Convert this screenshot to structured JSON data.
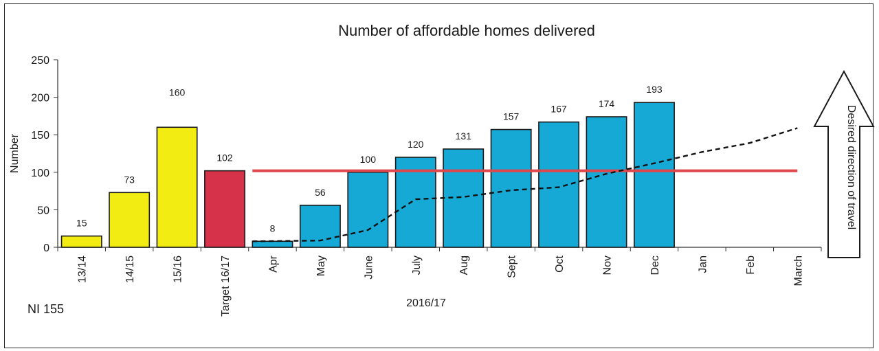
{
  "chart_data": {
    "type": "bar",
    "title": "Number of affordable homes delivered",
    "ylabel": "Number",
    "xlabel": "2016/17",
    "ylim": [
      0,
      250
    ],
    "yticks": [
      0,
      50,
      100,
      150,
      200,
      250
    ],
    "categories": [
      "13/14",
      "14/15",
      "15/16",
      "Target 16/17",
      "Apr",
      "May",
      "June",
      "July",
      "Aug",
      "Sept",
      "Oct",
      "Nov",
      "Dec",
      "Jan",
      "Feb",
      "March"
    ],
    "series": [
      {
        "values": [
          15,
          73,
          160,
          102,
          8,
          56,
          100,
          120,
          131,
          157,
          167,
          174,
          193,
          null,
          null,
          null
        ],
        "colors": [
          "#f2ec12",
          "#f2ec12",
          "#f2ec12",
          "#d6334a",
          "#16a9d6",
          "#16a9d6",
          "#16a9d6",
          "#16a9d6",
          "#16a9d6",
          "#16a9d6",
          "#16a9d6",
          "#16a9d6",
          "#16a9d6",
          null,
          null,
          null
        ],
        "data_labels": [
          "15",
          "73",
          "160",
          "102",
          "8",
          "56",
          "100",
          "120",
          "131",
          "157",
          "167",
          "174",
          "193",
          "",
          "",
          ""
        ]
      }
    ],
    "target_line": {
      "value": 102,
      "from": "Apr",
      "to": "March",
      "color": "#e0474c"
    },
    "trend_line": {
      "style": "dashed",
      "color": "#111111",
      "points": [
        {
          "x": "Apr",
          "y": 8
        },
        {
          "x": "May",
          "y": 9
        },
        {
          "x": "June",
          "y": 23
        },
        {
          "x": "July",
          "y": 64
        },
        {
          "x": "Aug",
          "y": 67
        },
        {
          "x": "Sept",
          "y": 76
        },
        {
          "x": "Oct",
          "y": 80
        },
        {
          "x": "Nov",
          "y": 98
        },
        {
          "x": "Dec",
          "y": 112
        },
        {
          "x": "Jan",
          "y": 127
        },
        {
          "x": "Feb",
          "y": 139
        },
        {
          "x": "March",
          "y": 159
        }
      ]
    },
    "direction_note": "Desired direction of travel",
    "indicator_code": "NI 155",
    "grid": false,
    "legend": "none"
  }
}
